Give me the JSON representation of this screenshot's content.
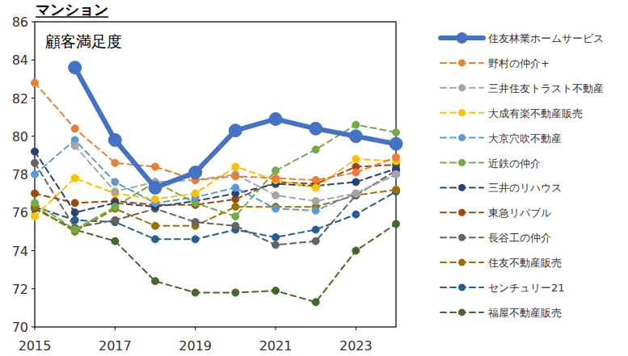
{
  "chart_data": {
    "type": "line",
    "title": "マンション",
    "subtitle": "顧客満足度",
    "x": [
      2015,
      2016,
      2017,
      2018,
      2019,
      2020,
      2021,
      2022,
      2023,
      2024
    ],
    "xlim": [
      2015,
      2024
    ],
    "xticks": [
      2015,
      2017,
      2019,
      2021,
      2023
    ],
    "ylim": [
      70,
      86
    ],
    "yticks": [
      70,
      72,
      74,
      76,
      78,
      80,
      82,
      84,
      86
    ],
    "grid": false,
    "legend": "right",
    "series": [
      {
        "name": "住友林業ホームサービス",
        "color": "#4472c4",
        "marker": "circle",
        "line_style": "solid",
        "values": [
          null,
          83.6,
          79.8,
          77.3,
          78.1,
          80.3,
          80.9,
          80.4,
          80.0,
          79.6
        ]
      },
      {
        "name": "野村の仲介+",
        "color": "#ed7d31",
        "marker": "circle",
        "line_style": "dashed",
        "values": [
          82.8,
          80.4,
          78.6,
          78.4,
          77.7,
          77.9,
          77.8,
          77.7,
          78.1,
          78.9
        ]
      },
      {
        "name": "三井住友トラスト不動産",
        "color": "#a5a5a5",
        "marker": "circle",
        "line_style": "dashed",
        "values": [
          null,
          79.5,
          77.1,
          77.6,
          77.7,
          78.0,
          76.9,
          76.6,
          77.0,
          78.0
        ]
      },
      {
        "name": "大成有楽不動産販売",
        "color": "#ffc000",
        "marker": "circle",
        "line_style": "dashed",
        "values": [
          75.8,
          77.8,
          77.0,
          76.7,
          77.0,
          78.4,
          77.7,
          77.3,
          78.8,
          78.7
        ]
      },
      {
        "name": "大京穴吹不動産",
        "color": "#5b9bd5",
        "marker": "circle",
        "line_style": "dashed",
        "values": [
          78.0,
          79.8,
          77.6,
          76.5,
          76.8,
          77.3,
          76.2,
          76.1,
          77.0,
          78.0
        ]
      },
      {
        "name": "近鉄の仲介",
        "color": "#70ad47",
        "marker": "circle",
        "line_style": "dashed",
        "values": [
          76.5,
          75.1,
          76.3,
          77.6,
          76.5,
          75.8,
          78.2,
          79.3,
          80.6,
          80.2
        ]
      },
      {
        "name": "三井のリハウス",
        "color": "#264478",
        "marker": "circle",
        "line_style": "dashed",
        "values": [
          79.2,
          76.0,
          76.5,
          76.3,
          76.6,
          77.0,
          77.5,
          77.4,
          77.6,
          78.3
        ]
      },
      {
        "name": "東急リバブル",
        "color": "#9e480e",
        "marker": "circle",
        "line_style": "dashed",
        "values": [
          77.0,
          76.5,
          76.6,
          76.4,
          76.4,
          76.7,
          77.6,
          77.5,
          78.4,
          78.5
        ]
      },
      {
        "name": "長谷工の仲介",
        "color": "#636363",
        "marker": "circle",
        "line_style": "dashed",
        "values": [
          78.6,
          75.2,
          75.6,
          76.2,
          75.5,
          75.3,
          74.3,
          74.5,
          76.9,
          78.2
        ]
      },
      {
        "name": "住友不動産販売",
        "color": "#997300",
        "marker": "circle",
        "line_style": "dashed",
        "values": [
          76.3,
          75.0,
          76.2,
          75.3,
          75.3,
          76.3,
          76.3,
          76.3,
          76.9,
          77.2
        ]
      },
      {
        "name": "センチュリー21",
        "color": "#255e91",
        "marker": "circle",
        "line_style": "dashed",
        "values": [
          76.3,
          75.6,
          75.5,
          74.6,
          74.6,
          75.1,
          74.7,
          75.1,
          75.9,
          77.1
        ]
      },
      {
        "name": "福屋不動産販売",
        "color": "#43682b",
        "marker": "circle",
        "line_style": "dashed",
        "values": [
          76.2,
          75.1,
          74.5,
          72.4,
          71.8,
          71.8,
          71.9,
          71.3,
          74.0,
          75.4
        ]
      }
    ]
  }
}
